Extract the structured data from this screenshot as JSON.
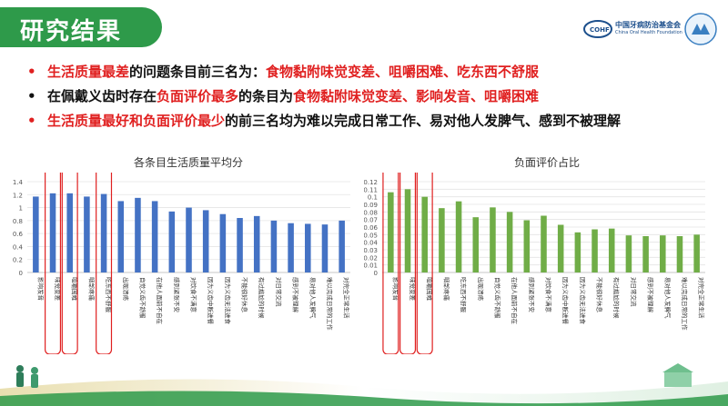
{
  "header": {
    "title": "研究结果"
  },
  "logo": {
    "name_cn": "中国牙病防治基金会",
    "name_en": "China Oral Health Foundation",
    "badge": "COHF"
  },
  "bullets": [
    {
      "parts": [
        {
          "t": "生活质量最差",
          "c": "red"
        },
        {
          "t": "的问题条目前三名为：",
          "c": "black"
        },
        {
          "t": "食物黏附味觉变差、咀嚼困难、吃东西不舒服",
          "c": "red"
        }
      ]
    },
    {
      "parts": [
        {
          "t": "在佩戴义齿时存在",
          "c": "black"
        },
        {
          "t": "负面评价最多",
          "c": "red"
        },
        {
          "t": "的条目为",
          "c": "black"
        },
        {
          "t": "食物黏附味觉变差、影响发音、咀嚼困难",
          "c": "red"
        }
      ]
    },
    {
      "parts": [
        {
          "t": "生活质量最好和负面评价最少",
          "c": "red"
        },
        {
          "t": "的前三名均为难以完成日常工作、易对他人发脾气、感到不被理解",
          "c": "black"
        }
      ]
    }
  ],
  "colors": {
    "accent_green": "#2e9a4a",
    "bar_blue": "#4472c4",
    "bar_green": "#70ad47",
    "highlight_red": "#e02020"
  },
  "chart_data": [
    {
      "type": "bar",
      "title": "各条目生活质量平均分",
      "ylim": [
        0,
        1.4
      ],
      "yticks": [
        "0",
        "0.2",
        "0.4",
        "0.6",
        "0.8",
        "1",
        "1.2",
        "1.4"
      ],
      "categories": [
        "影响发音",
        "味觉变差",
        "咀嚼困难",
        "咽部疼痛",
        "吃东西不舒服",
        "出现溃疡",
        "自觉义齿不舒服",
        "在他人面前不自在",
        "感到紧张不安",
        "对饮食不满意",
        "因为义齿中断进餐",
        "因为义齿无法进食",
        "不能很好休息",
        "有过尴尬的时候",
        "对日常交流",
        "感到不被理解",
        "易对他人发脾气",
        "难以完成日常的工作",
        "对完全正常生活"
      ],
      "values": [
        1.17,
        1.22,
        1.22,
        1.17,
        1.21,
        1.1,
        1.15,
        1.1,
        0.94,
        1.0,
        0.96,
        0.9,
        0.84,
        0.87,
        0.8,
        0.76,
        0.75,
        0.74,
        0.8
      ],
      "highlighted": [
        1,
        2,
        4
      ]
    },
    {
      "type": "bar",
      "title": "负面评价占比",
      "ylim": [
        0,
        0.12
      ],
      "yticks": [
        "0",
        "0.01",
        "0.02",
        "0.03",
        "0.04",
        "0.05",
        "0.06",
        "0.07",
        "0.08",
        "0.09",
        "0.1",
        "0.11",
        "0.12"
      ],
      "categories": [
        "影响发音",
        "味觉变差",
        "咀嚼困难",
        "咽部疼痛",
        "吃东西不舒服",
        "出现溃疡",
        "自觉义齿不舒服",
        "在他人面前不自在",
        "感到紧张不安",
        "对饮食不满意",
        "因为义齿中断进餐",
        "因为义齿无法进食",
        "不能很好休息",
        "有过尴尬的时候",
        "对日常交流",
        "感到不被理解",
        "易对他人发脾气",
        "难以完成日常的工作",
        "对完全正常生活"
      ],
      "values": [
        0.106,
        0.11,
        0.1,
        0.085,
        0.094,
        0.073,
        0.086,
        0.08,
        0.069,
        0.075,
        0.063,
        0.053,
        0.057,
        0.058,
        0.049,
        0.048,
        0.049,
        0.048,
        0.05
      ],
      "highlighted": [
        0,
        1,
        2
      ]
    }
  ]
}
